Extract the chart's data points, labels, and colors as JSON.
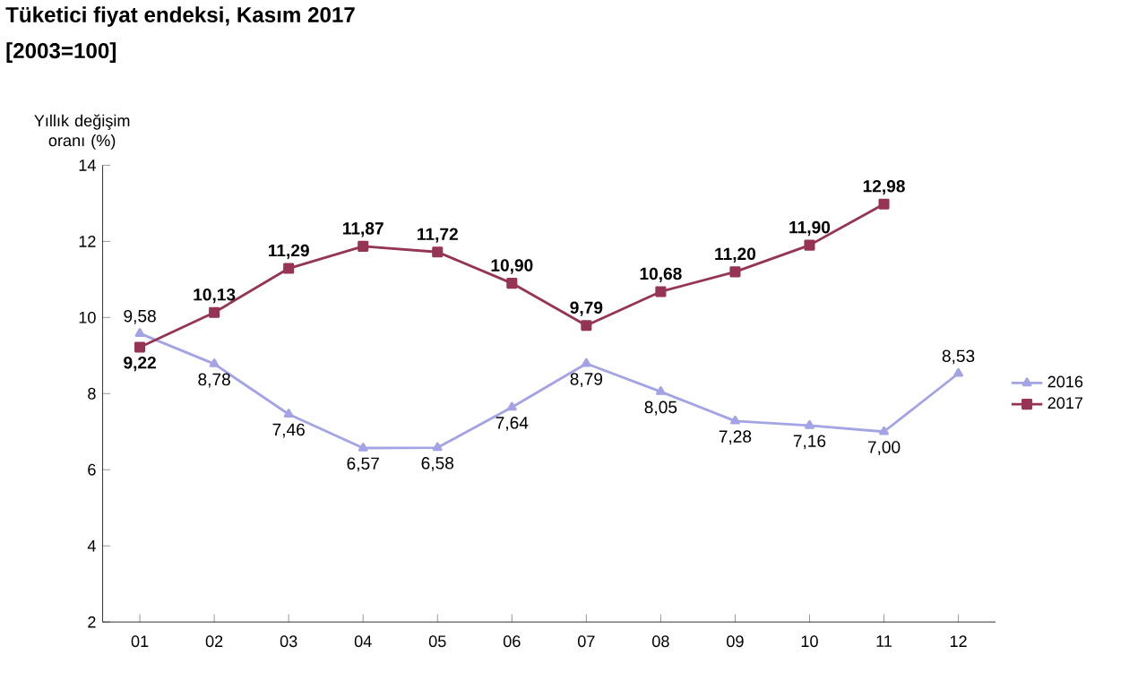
{
  "chart_data": {
    "type": "line",
    "title": "Tüketici fiyat endeksi, Kasım 2017",
    "subtitle": "[2003=100]",
    "ylabel": "Yıllık değişim oranı (%)",
    "categories": [
      "01",
      "02",
      "03",
      "04",
      "05",
      "06",
      "07",
      "08",
      "09",
      "10",
      "11",
      "12"
    ],
    "series": [
      {
        "name": "2016",
        "color": "#a3a3e6",
        "marker": "triangle",
        "values": [
          9.58,
          8.78,
          7.46,
          6.57,
          6.58,
          7.64,
          8.79,
          8.05,
          7.28,
          7.16,
          7.0,
          8.53
        ],
        "value_labels": [
          "9,58",
          "8,78",
          "7,46",
          "6,57",
          "6,58",
          "7,64",
          "8,79",
          "8,05",
          "7,28",
          "7,16",
          "7,00",
          "8,53"
        ]
      },
      {
        "name": "2017",
        "color": "#953553",
        "marker": "square",
        "values": [
          9.22,
          10.13,
          11.29,
          11.87,
          11.72,
          10.9,
          9.79,
          10.68,
          11.2,
          11.9,
          12.98,
          null
        ],
        "value_labels": [
          "9,22",
          "10,13",
          "11,29",
          "11,87",
          "11,72",
          "10,90",
          "9,79",
          "10,68",
          "11,20",
          "11,90",
          "12,98",
          null
        ]
      }
    ],
    "ylim": [
      2,
      14
    ],
    "yticks": [
      2,
      4,
      6,
      8,
      10,
      12,
      14
    ],
    "grid": false,
    "legend": "right"
  }
}
